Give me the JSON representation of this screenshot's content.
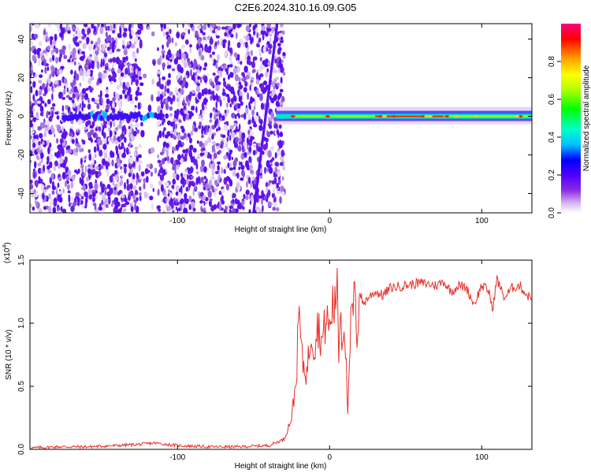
{
  "title": "C2E6.2024.310.16.09.G05",
  "chart_data": [
    {
      "type": "heatmap",
      "xlabel": "Height of straight line (km)",
      "ylabel": "Frequency (Hz)",
      "xlim": [
        -197,
        133
      ],
      "ylim": [
        -50,
        48
      ],
      "x_ticks": [
        "-100",
        "0",
        "100"
      ],
      "y_ticks": [
        "-40",
        "-20",
        "0",
        "20",
        "40"
      ],
      "colorbar": {
        "label": "Normalized spectral amplitude",
        "range": [
          0,
          1
        ],
        "ticks": [
          "0.0",
          "0.2",
          "0.4",
          "0.6",
          "0.8"
        ],
        "colors": [
          "#ffffff",
          "#d8b8f0",
          "#8a2be2",
          "#4b00ff",
          "#0000ff",
          "#00bfff",
          "#00ffcc",
          "#00ff00",
          "#b0ff00",
          "#ffff00",
          "#ff9900",
          "#ff0000",
          "#ff0080"
        ]
      },
      "noise_region_x": [
        -197,
        -35
      ],
      "signal_region_x": [
        -35,
        133
      ],
      "signal_frequency_hz": 0
    },
    {
      "type": "line",
      "xlabel": "Height of straight line (km)",
      "ylabel": "SNR (10 * v/v)",
      "y_scale_label": "(x10",
      "y_scale_exp": "4",
      "y_scale_close": ")",
      "xlim": [
        -197,
        133
      ],
      "ylim": [
        0,
        1.5
      ],
      "x_ticks": [
        "-100",
        "0",
        "100"
      ],
      "y_ticks": [
        "0.0",
        "0.5",
        "1.0",
        "1.5"
      ],
      "line_color": "#e8302a",
      "x": [
        -197,
        -180,
        -160,
        -140,
        -125,
        -115,
        -100,
        -80,
        -60,
        -40,
        -30,
        -25,
        -22,
        -20,
        -18,
        -15,
        -12,
        -10,
        -8,
        -5,
        -2,
        0,
        2,
        4,
        5,
        6,
        7,
        8,
        10,
        12,
        14,
        15,
        17,
        18,
        20,
        22,
        25,
        30,
        35,
        40,
        50,
        60,
        70,
        75,
        80,
        85,
        90,
        95,
        100,
        105,
        107,
        110,
        115,
        120,
        125,
        128,
        130,
        133
      ],
      "y": [
        0.01,
        0.02,
        0.02,
        0.03,
        0.04,
        0.05,
        0.03,
        0.02,
        0.02,
        0.03,
        0.08,
        0.25,
        0.55,
        1.1,
        0.7,
        0.6,
        0.95,
        0.8,
        1.0,
        0.85,
        1.05,
        0.95,
        1.15,
        1.1,
        1.5,
        0.7,
        1.2,
        0.9,
        1.0,
        0.25,
        1.0,
        1.1,
        1.2,
        0.9,
        1.25,
        1.15,
        1.2,
        1.25,
        1.22,
        1.28,
        1.3,
        1.32,
        1.3,
        1.33,
        1.25,
        1.3,
        1.28,
        1.15,
        1.3,
        1.25,
        1.1,
        1.35,
        1.2,
        1.28,
        1.3,
        1.25,
        1.22,
        1.2
      ]
    }
  ]
}
